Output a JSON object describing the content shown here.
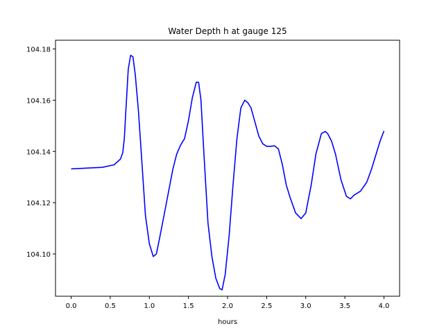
{
  "chart_data": {
    "type": "line",
    "title": "Water Depth h at gauge 125",
    "xlabel": "hours",
    "ylabel": "",
    "xlim": [
      -0.2,
      4.2
    ],
    "ylim": [
      104.0835,
      104.1834
    ],
    "xticks": [
      0.0,
      0.5,
      1.0,
      1.5,
      2.0,
      2.5,
      3.0,
      3.5,
      4.0
    ],
    "xtick_labels": [
      "0.0",
      "0.5",
      "1.0",
      "1.5",
      "2.0",
      "2.5",
      "3.0",
      "3.5",
      "4.0"
    ],
    "yticks": [
      104.1,
      104.12,
      104.14,
      104.16,
      104.18
    ],
    "ytick_labels": [
      "104.10",
      "104.12",
      "104.14",
      "104.16",
      "104.18"
    ],
    "grid": false,
    "series": [
      {
        "color": "#0000ff",
        "x": [
          0.0,
          0.2,
          0.4,
          0.55,
          0.63,
          0.66,
          0.68,
          0.7,
          0.73,
          0.76,
          0.79,
          0.82,
          0.86,
          0.9,
          0.95,
          1.0,
          1.05,
          1.09,
          1.13,
          1.2,
          1.3,
          1.35,
          1.4,
          1.45,
          1.5,
          1.55,
          1.6,
          1.63,
          1.66,
          1.7,
          1.75,
          1.8,
          1.85,
          1.9,
          1.93,
          1.97,
          2.02,
          2.07,
          2.12,
          2.17,
          2.22,
          2.26,
          2.3,
          2.35,
          2.4,
          2.45,
          2.5,
          2.55,
          2.6,
          2.65,
          2.7,
          2.75,
          2.8,
          2.87,
          2.94,
          3.0,
          3.07,
          3.13,
          3.2,
          3.25,
          3.28,
          3.33,
          3.38,
          3.45,
          3.52,
          3.57,
          3.62,
          3.7,
          3.78,
          3.84,
          3.9,
          3.95,
          4.0
        ],
        "y": [
          104.1332,
          104.1335,
          104.1338,
          104.1348,
          104.137,
          104.1395,
          104.145,
          104.156,
          104.172,
          104.1775,
          104.177,
          104.17,
          104.156,
          104.138,
          104.115,
          104.104,
          104.099,
          104.1,
          104.106,
          104.117,
          104.133,
          104.139,
          104.1425,
          104.145,
          104.152,
          104.161,
          104.167,
          104.167,
          104.16,
          104.138,
          104.112,
          104.099,
          104.0905,
          104.0865,
          104.086,
          104.092,
          104.107,
          104.127,
          104.145,
          104.157,
          104.16,
          104.159,
          104.157,
          104.1515,
          104.146,
          104.143,
          104.142,
          104.142,
          104.1422,
          104.141,
          104.135,
          104.127,
          104.122,
          104.116,
          104.1138,
          104.116,
          104.127,
          104.139,
          104.147,
          104.1478,
          104.147,
          104.144,
          104.139,
          104.129,
          104.1225,
          104.1215,
          104.123,
          104.1245,
          104.128,
          104.133,
          104.139,
          104.144,
          104.148
        ]
      }
    ]
  }
}
